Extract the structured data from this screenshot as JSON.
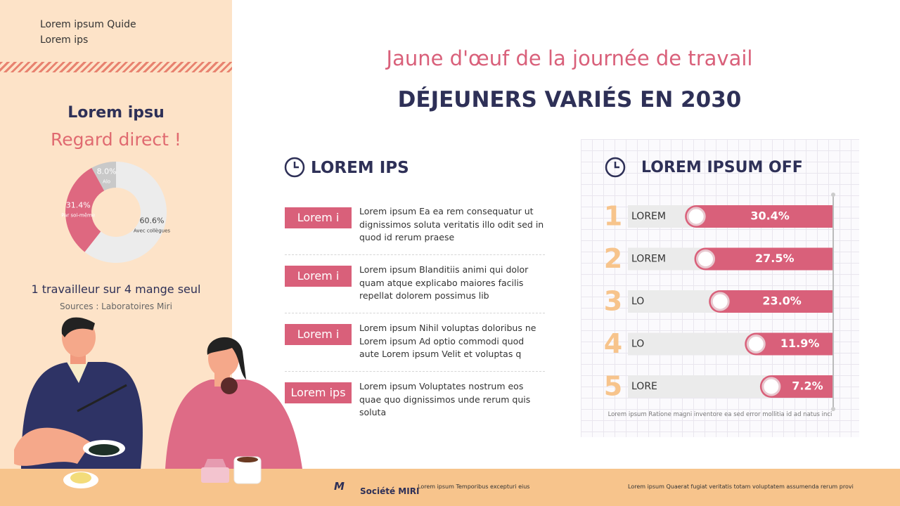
{
  "sidebar": {
    "lines": [
      "Lorem ipsum Quide",
      "Lorem ips"
    ],
    "heading": "Lorem ipsu",
    "subheading": "Regard direct !",
    "stat": "1 travailleur sur 4 mange seul",
    "source": "Sources : Laboratoires Miri"
  },
  "donut": {
    "type": "pie",
    "categories": [
      "Alo",
      "Par soi-même",
      "Avec collègues"
    ],
    "values": [
      8.0,
      31.4,
      60.6
    ],
    "value_labels": [
      "8.0%",
      "31.4%",
      "60.6%"
    ],
    "colors": [
      "#c9c9c9",
      "#de6880",
      "#ececec"
    ]
  },
  "header": {
    "subtitle": "Jaune d'œuf de la journée de travail",
    "title": "DÉJEUNERS VARIÉS EN 2030"
  },
  "list": {
    "title": "LOREM IPS",
    "items": [
      {
        "tag": "Lorem i",
        "text": "Lorem ipsum Ea ea rem consequatur ut dignissimos soluta veritatis illo odit sed in quod id rerum praese"
      },
      {
        "tag": "Lorem i",
        "text": "Lorem ipsum Blanditiis animi qui dolor quam atque explicabo maiores facilis repellat dolorem possimus lib"
      },
      {
        "tag": "Lorem i",
        "text": "Lorem ipsum Nihil voluptas doloribus ne Lorem ipsum Ad optio commodi quod aute Lorem ipsum Velit et voluptas q"
      },
      {
        "tag": "Lorem ips",
        "text": "Lorem ipsum Voluptates nostrum eos quae quo dignissimos unde rerum quis soluta"
      }
    ]
  },
  "ranking": {
    "type": "bar",
    "title": "LOREM IPSUM OFF",
    "ranks": [
      "1",
      "2",
      "3",
      "4",
      "5"
    ],
    "categories": [
      "LOREM",
      "LOREM",
      "LO",
      "LO",
      "LORE"
    ],
    "values": [
      30.4,
      27.5,
      23.0,
      11.9,
      7.2
    ],
    "value_labels": [
      "30.4%",
      "27.5%",
      "23.0%",
      "11.9%",
      "7.2%"
    ],
    "color": "#d9607a",
    "note": "Lorem ipsum Ratione magni inventore ea sed error mollitia id ad natus inci"
  },
  "footer": {
    "logo": "M",
    "brand": "Société MIRI",
    "left": "Lorem ipsum Temporibus excepturi eius",
    "right": "Lorem ipsum Quaerat fugiat veritatis totam voluptatem assumenda rerum provi"
  }
}
